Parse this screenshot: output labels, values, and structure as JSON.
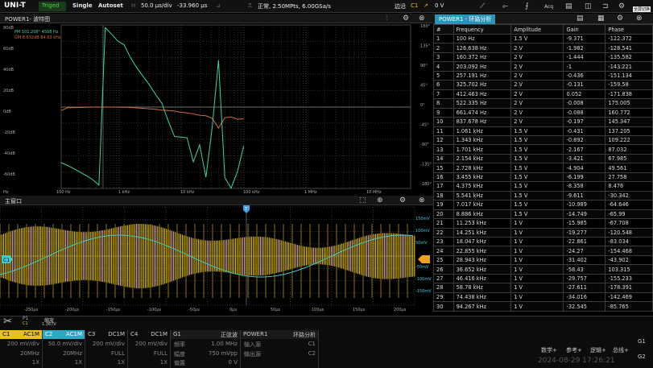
{
  "topbar": {
    "logo": "UNI-T",
    "trig_state": "Triged",
    "single": "Single",
    "autoset": "Autoset",
    "timebase": "50.0 μs/div",
    "trig_pos": "-33.960 μs",
    "acq_mode": "正常, 2.50MPts, 6.00GSa/s",
    "edge": "边沿",
    "trig_src": "C1",
    "trig_level": "0 V",
    "menu_icons": [
      "ruler-icon",
      "measure-icon",
      "math-icon",
      "acq-icon",
      "save-icon",
      "display-icon",
      "trigger-icon",
      "utility-icon"
    ],
    "tooltip": "全屏切换"
  },
  "bode": {
    "title": "POWER1- 波特图",
    "pm": "PM 101.208° 4508 Hz",
    "gm": "GM 8.632dB 84.63 kHz",
    "y_left": [
      "80dB",
      "60dB",
      "40dB",
      "20dB",
      "0dB",
      "-20dB",
      "-40dB",
      "-60dB"
    ],
    "y_right": [
      "180°",
      "135°",
      "90°",
      "45°",
      "0°",
      "-45°",
      "-90°",
      "-135°",
      "-180°"
    ],
    "x_labels": [
      "Hz",
      "100 Hz",
      "1 kHz",
      "10 kHz",
      "100 kHz",
      "1 MHz",
      "10 MHz"
    ],
    "colors": {
      "gain": "#3dd4a6",
      "phase": "#d2693a"
    }
  },
  "main": {
    "title": "主窗口",
    "x_labels": [
      "-250μs",
      "-200μs",
      "-150μs",
      "-100μs",
      "-50μs",
      "0μs",
      "50μs",
      "100μs",
      "150μs",
      "200μs"
    ],
    "y_right": [
      "150mV",
      "100mV",
      "50mV",
      "-50mV",
      "-100mV",
      "-150mV"
    ],
    "marker_c1": "C1",
    "marker_t": "T",
    "colors": {
      "ch1": "#e8c020",
      "ch2": "#43c8d8"
    }
  },
  "table": {
    "title": "POWER1 - 环路分析",
    "headers": [
      "#",
      "Frequency",
      "Amplitude",
      "Gain",
      "Phase"
    ],
    "rows": [
      [
        "1",
        "100 Hz",
        "1.5 V",
        "-9.371",
        "-122.372"
      ],
      [
        "2",
        "126.638 Hz",
        "2 V",
        "-1.982",
        "-128.541"
      ],
      [
        "3",
        "160.372 Hz",
        "2 V",
        "-1.444",
        "-135.582"
      ],
      [
        "4",
        "203.092 Hz",
        "2 V",
        "-1",
        "-143.221"
      ],
      [
        "5",
        "257.191 Hz",
        "2 V",
        "-0.436",
        "-151.134"
      ],
      [
        "6",
        "325.702 Hz",
        "2 V",
        "-0.131",
        "-159.58"
      ],
      [
        "7",
        "412.463 Hz",
        "2 V",
        "0.052",
        "-171.838"
      ],
      [
        "8",
        "522.335 Hz",
        "2 V",
        "-0.008",
        "175.005"
      ],
      [
        "9",
        "661.474 Hz",
        "2 V",
        "-0.088",
        "160.772"
      ],
      [
        "10",
        "837.678 Hz",
        "2 V",
        "-0.197",
        "145.347"
      ],
      [
        "11",
        "1.061 kHz",
        "1.5 V",
        "-0.431",
        "137.205"
      ],
      [
        "12",
        "1.343 kHz",
        "1.5 V",
        "-0.892",
        "109.222"
      ],
      [
        "13",
        "1.701 kHz",
        "1.5 V",
        "-2.167",
        "87.032"
      ],
      [
        "14",
        "2.154 kHz",
        "1.5 V",
        "-3.421",
        "67.985"
      ],
      [
        "15",
        "2.728 kHz",
        "1.5 V",
        "-4.904",
        "49.561"
      ],
      [
        "16",
        "3.455 kHz",
        "1.5 V",
        "-6.199",
        "27.758"
      ],
      [
        "17",
        "4.375 kHz",
        "1.5 V",
        "-8.358",
        "8.476"
      ],
      [
        "18",
        "5.541 kHz",
        "1.5 V",
        "-9.611",
        "-30.342"
      ],
      [
        "19",
        "7.017 kHz",
        "1.5 V",
        "-10.989",
        "-64.646"
      ],
      [
        "20",
        "8.886 kHz",
        "1.5 V",
        "-14.749",
        "-65.99"
      ],
      [
        "21",
        "11.253 kHz",
        "1 V",
        "-15.985",
        "-67.708"
      ],
      [
        "22",
        "14.251 kHz",
        "1 V",
        "-19.277",
        "-120.548"
      ],
      [
        "23",
        "18.047 kHz",
        "1 V",
        "-22.861",
        "-83.034"
      ],
      [
        "24",
        "22.855 kHz",
        "1 V",
        "-24.27",
        "-154.468"
      ],
      [
        "25",
        "28.943 kHz",
        "1 V",
        "-31.402",
        "-43.902"
      ],
      [
        "26",
        "36.652 kHz",
        "1 V",
        "-58.43",
        "103.315"
      ],
      [
        "27",
        "46.416 kHz",
        "1 V",
        "-29.757",
        "-155.233"
      ],
      [
        "28",
        "58.78 kHz",
        "1 V",
        "-27.611",
        "-178.391"
      ],
      [
        "29",
        "74.438 kHz",
        "1 V",
        "-34.016",
        "-142.469"
      ],
      [
        "30",
        "94.267 kHz",
        "1 V",
        "-32.545",
        "-85.765"
      ]
    ]
  },
  "bottom": {
    "zoom_label": "缩放",
    "zoom_ch": "C1",
    "zoom_val": "1.367V",
    "c1": {
      "name": "C1",
      "coupling": "AC1M",
      "scale": "200 mV/div",
      "bw": "20MHz",
      "probe": "1X"
    },
    "c2": {
      "name": "C2",
      "coupling": "AC1M",
      "scale": "50.0 mV/div",
      "bw": "20MHz",
      "probe": "1X"
    },
    "c3": {
      "name": "C3",
      "coupling": "DC1M",
      "scale": "200 mV/div",
      "bw": "FULL",
      "probe": "1X"
    },
    "c4": {
      "name": "C4",
      "coupling": "DC1M",
      "scale": "200 mV/div",
      "bw": "FULL",
      "probe": "1X"
    },
    "gen": {
      "name": "G1",
      "wave": "正弦波",
      "freq_label": "频率",
      "freq": "1.00 MHz",
      "amp_label": "幅度",
      "amp": "750 mVpp",
      "offset_label": "偏置",
      "offset": "0 V"
    },
    "power": {
      "name": "POWER1",
      "mode": "环路分析",
      "in_label": "输入源",
      "in_src": "C1",
      "out_label": "输出源",
      "out_src": "C2"
    },
    "buttons": [
      "数学+",
      "参考+",
      "逻辑+",
      "总线+"
    ],
    "g1": "G1",
    "g2": "G2",
    "datetime": "2024-08-29 17:26:21"
  }
}
